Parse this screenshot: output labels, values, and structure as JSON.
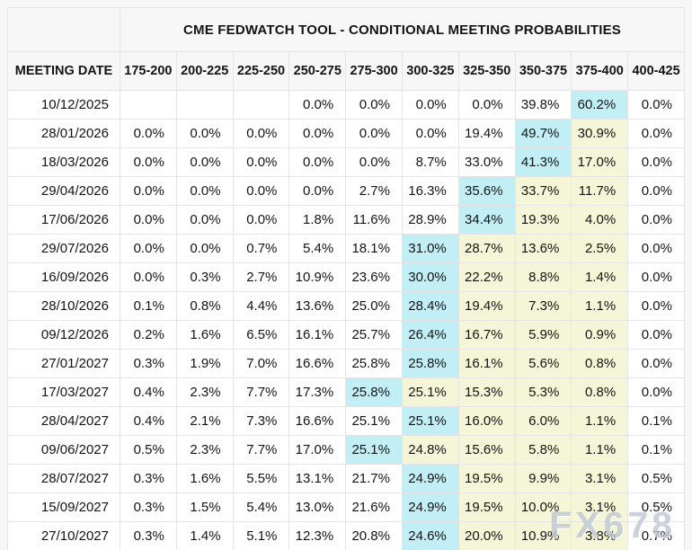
{
  "table": {
    "title": "CME FEDWATCH TOOL - CONDITIONAL MEETING PROBABILITIES",
    "columns": [
      "MEETING DATE",
      "175-200",
      "200-225",
      "225-250",
      "250-275",
      "275-300",
      "300-325",
      "325-350",
      "350-375",
      "375-400",
      "400-425"
    ],
    "rows": [
      {
        "date": "10/12/2025",
        "values": [
          "",
          "",
          "",
          "0.0%",
          "0.0%",
          "0.0%",
          "0.0%",
          "39.8%",
          "60.2%",
          "0.0%"
        ],
        "cyan": 8,
        "yellow": []
      },
      {
        "date": "28/01/2026",
        "values": [
          "0.0%",
          "0.0%",
          "0.0%",
          "0.0%",
          "0.0%",
          "0.0%",
          "19.4%",
          "49.7%",
          "30.9%",
          "0.0%"
        ],
        "cyan": 7,
        "yellow": [
          8
        ]
      },
      {
        "date": "18/03/2026",
        "values": [
          "0.0%",
          "0.0%",
          "0.0%",
          "0.0%",
          "0.0%",
          "8.7%",
          "33.0%",
          "41.3%",
          "17.0%",
          "0.0%"
        ],
        "cyan": 7,
        "yellow": [
          8
        ]
      },
      {
        "date": "29/04/2026",
        "values": [
          "0.0%",
          "0.0%",
          "0.0%",
          "0.0%",
          "2.7%",
          "16.3%",
          "35.6%",
          "33.7%",
          "11.7%",
          "0.0%"
        ],
        "cyan": 6,
        "yellow": [
          7,
          8
        ]
      },
      {
        "date": "17/06/2026",
        "values": [
          "0.0%",
          "0.0%",
          "0.0%",
          "1.8%",
          "11.6%",
          "28.9%",
          "34.4%",
          "19.3%",
          "4.0%",
          "0.0%"
        ],
        "cyan": 6,
        "yellow": [
          7,
          8
        ]
      },
      {
        "date": "29/07/2026",
        "values": [
          "0.0%",
          "0.0%",
          "0.7%",
          "5.4%",
          "18.1%",
          "31.0%",
          "28.7%",
          "13.6%",
          "2.5%",
          "0.0%"
        ],
        "cyan": 5,
        "yellow": [
          6,
          7,
          8
        ]
      },
      {
        "date": "16/09/2026",
        "values": [
          "0.0%",
          "0.3%",
          "2.7%",
          "10.9%",
          "23.6%",
          "30.0%",
          "22.2%",
          "8.8%",
          "1.4%",
          "0.0%"
        ],
        "cyan": 5,
        "yellow": [
          6,
          7,
          8
        ]
      },
      {
        "date": "28/10/2026",
        "values": [
          "0.1%",
          "0.8%",
          "4.4%",
          "13.6%",
          "25.0%",
          "28.4%",
          "19.4%",
          "7.3%",
          "1.1%",
          "0.0%"
        ],
        "cyan": 5,
        "yellow": [
          6,
          7,
          8
        ]
      },
      {
        "date": "09/12/2026",
        "values": [
          "0.2%",
          "1.6%",
          "6.5%",
          "16.1%",
          "25.7%",
          "26.4%",
          "16.7%",
          "5.9%",
          "0.9%",
          "0.0%"
        ],
        "cyan": 5,
        "yellow": [
          6,
          7,
          8
        ]
      },
      {
        "date": "27/01/2027",
        "values": [
          "0.3%",
          "1.9%",
          "7.0%",
          "16.6%",
          "25.8%",
          "25.8%",
          "16.1%",
          "5.6%",
          "0.8%",
          "0.0%"
        ],
        "cyan": 5,
        "yellow": [
          6,
          7,
          8
        ]
      },
      {
        "date": "17/03/2027",
        "values": [
          "0.4%",
          "2.3%",
          "7.7%",
          "17.3%",
          "25.8%",
          "25.1%",
          "15.3%",
          "5.3%",
          "0.8%",
          "0.0%"
        ],
        "cyan": 4,
        "yellow": [
          5,
          6,
          7,
          8
        ]
      },
      {
        "date": "28/04/2027",
        "values": [
          "0.4%",
          "2.1%",
          "7.3%",
          "16.6%",
          "25.1%",
          "25.1%",
          "16.0%",
          "6.0%",
          "1.1%",
          "0.1%"
        ],
        "cyan": 5,
        "yellow": [
          6,
          7,
          8
        ]
      },
      {
        "date": "09/06/2027",
        "values": [
          "0.5%",
          "2.3%",
          "7.7%",
          "17.0%",
          "25.1%",
          "24.8%",
          "15.6%",
          "5.8%",
          "1.1%",
          "0.1%"
        ],
        "cyan": 4,
        "yellow": [
          5,
          6,
          7,
          8
        ]
      },
      {
        "date": "28/07/2027",
        "values": [
          "0.3%",
          "1.6%",
          "5.5%",
          "13.1%",
          "21.7%",
          "24.9%",
          "19.5%",
          "9.9%",
          "3.1%",
          "0.5%"
        ],
        "cyan": 5,
        "yellow": [
          6,
          7,
          8
        ]
      },
      {
        "date": "15/09/2027",
        "values": [
          "0.3%",
          "1.5%",
          "5.4%",
          "13.0%",
          "21.6%",
          "24.9%",
          "19.5%",
          "10.0%",
          "3.1%",
          "0.5%"
        ],
        "cyan": 5,
        "yellow": [
          6,
          7,
          8
        ]
      },
      {
        "date": "27/10/2027",
        "values": [
          "0.3%",
          "1.4%",
          "5.1%",
          "12.3%",
          "20.8%",
          "24.6%",
          "20.0%",
          "10.9%",
          "3.8%",
          "0.7%"
        ],
        "cyan": 5,
        "yellow": [
          6,
          7,
          8
        ]
      }
    ]
  },
  "colors": {
    "highlight_cyan": "#c2eef6",
    "highlight_yellow": "#f5f5d8",
    "border": "#e4e4e4"
  },
  "watermark": {
    "text": "FX678"
  }
}
